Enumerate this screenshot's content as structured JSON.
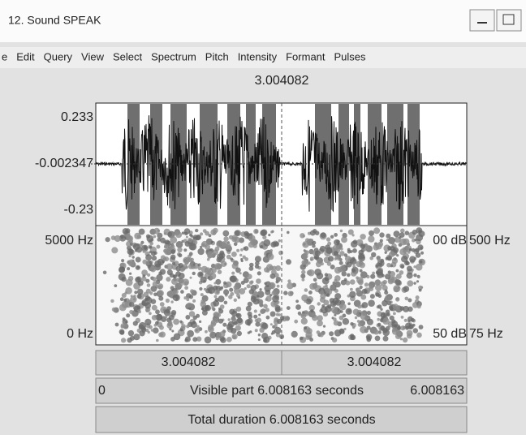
{
  "window": {
    "title": "12. Sound SPEAK"
  },
  "menu": [
    "e",
    "Edit",
    "Query",
    "View",
    "Select",
    "Spectrum",
    "Pitch",
    "Intensity",
    "Formant",
    "Pulses"
  ],
  "cursor_time": "3.004082",
  "waveform": {
    "top_label": "0.233",
    "mid_label": "-0.002347",
    "bottom_label": "-0.23"
  },
  "spectrogram": {
    "top_label": "5000 Hz",
    "bottom_label": "0 Hz",
    "top_right_db": "00 dB",
    "top_right_hz": "500 Hz",
    "bottom_right_db": "50 dB",
    "bottom_right_hz": "75 Hz"
  },
  "bars": {
    "left_time": "3.004082",
    "right_time": "3.004082",
    "visible_start": "0",
    "visible_label": "Visible part 6.008163 seconds",
    "visible_end": "6.008163",
    "total_label": "Total duration 6.008163 seconds"
  }
}
